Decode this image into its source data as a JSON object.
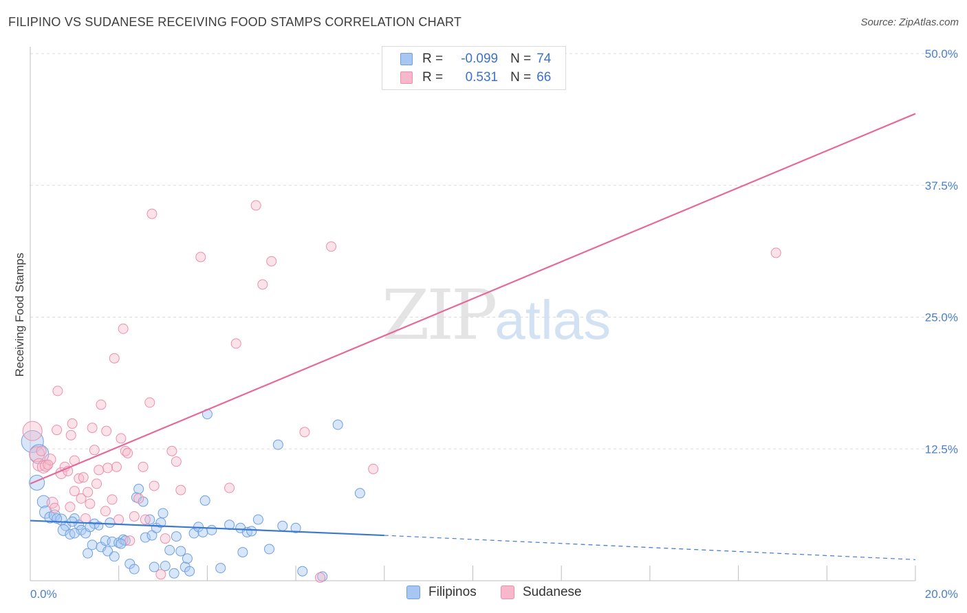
{
  "title": "FILIPINO VS SUDANESE RECEIVING FOOD STAMPS CORRELATION CHART",
  "source": "Source: ZipAtlas.com",
  "watermark": {
    "zip": "ZIP",
    "atlas": "atlas"
  },
  "legend": {
    "rows": [
      {
        "r_label": "R =",
        "r_value": "-0.099",
        "n_label": "N =",
        "n_value": "74",
        "color": "#a7c7f2"
      },
      {
        "r_label": "R =",
        "r_value": "0.531",
        "n_label": "N =",
        "n_value": "66",
        "color": "#f7b8cb"
      }
    ]
  },
  "bottom_legend": {
    "filipinos": "Filipinos",
    "sudanese": "Sudanese"
  },
  "colors": {
    "blue": "#4a86d6",
    "blue_fill": "#a7c7f2",
    "pink": "#e96c97",
    "pink_fill": "#f7b8cb",
    "tick": "#4a7fcf"
  },
  "chart_data": {
    "type": "scatter",
    "title": "FILIPINO VS SUDANESE RECEIVING FOOD STAMPS CORRELATION CHART",
    "xlabel": "",
    "ylabel": "Receiving Food Stamps",
    "xlim": [
      0,
      20
    ],
    "ylim": [
      0,
      50
    ],
    "x_tick_labels": [
      "0.0%",
      "20.0%"
    ],
    "y_ticks": [
      12.5,
      25.0,
      37.5,
      50.0
    ],
    "y_tick_labels": [
      "12.5%",
      "25.0%",
      "37.5%",
      "50.0%"
    ],
    "grid": true,
    "legend_position": "top-center",
    "series": [
      {
        "name": "Filipinos",
        "r": -0.099,
        "n": 74,
        "trend": {
          "x0": 0,
          "y0": 5.7,
          "x1": 8.0,
          "y1": 4.3,
          "dashed_to_x": 20,
          "dashed_to_y": 2.0
        },
        "points": [
          [
            0.05,
            13.2,
            16
          ],
          [
            0.2,
            12.0,
            14
          ],
          [
            0.15,
            9.3,
            11
          ],
          [
            0.3,
            7.5,
            9
          ],
          [
            0.35,
            6.5,
            9
          ],
          [
            0.45,
            6.0,
            8
          ],
          [
            0.55,
            6.2,
            8
          ],
          [
            0.7,
            5.8,
            8
          ],
          [
            0.8,
            5.2,
            7
          ],
          [
            0.75,
            4.8,
            8
          ],
          [
            0.9,
            4.4,
            7
          ],
          [
            1.0,
            5.9,
            7
          ],
          [
            1.1,
            5.3,
            7
          ],
          [
            1.15,
            4.8,
            7
          ],
          [
            1.25,
            4.5,
            7
          ],
          [
            1.3,
            2.6,
            7
          ],
          [
            1.4,
            3.4,
            7
          ],
          [
            1.45,
            5.4,
            7
          ],
          [
            1.55,
            5.2,
            6
          ],
          [
            1.6,
            3.2,
            7
          ],
          [
            1.7,
            3.8,
            7
          ],
          [
            1.75,
            2.8,
            7
          ],
          [
            1.8,
            5.5,
            7
          ],
          [
            1.85,
            3.7,
            7
          ],
          [
            1.9,
            2.3,
            7
          ],
          [
            2.0,
            3.6,
            7
          ],
          [
            2.1,
            3.9,
            7
          ],
          [
            2.15,
            3.8,
            7
          ],
          [
            2.25,
            1.6,
            7
          ],
          [
            2.35,
            1.1,
            7
          ],
          [
            2.4,
            7.9,
            7
          ],
          [
            2.45,
            8.7,
            7
          ],
          [
            2.55,
            7.5,
            7
          ],
          [
            2.6,
            4.1,
            7
          ],
          [
            2.7,
            5.8,
            7
          ],
          [
            2.75,
            4.3,
            7
          ],
          [
            2.85,
            5.0,
            7
          ],
          [
            2.95,
            5.5,
            7
          ],
          [
            3.0,
            6.4,
            7
          ],
          [
            2.8,
            1.3,
            7
          ],
          [
            3.05,
            1.4,
            7
          ],
          [
            3.15,
            2.9,
            7
          ],
          [
            3.25,
            0.7,
            7
          ],
          [
            3.3,
            4.2,
            7
          ],
          [
            3.4,
            2.8,
            7
          ],
          [
            3.5,
            1.3,
            7
          ],
          [
            3.55,
            2.1,
            7
          ],
          [
            3.6,
            0.9,
            7
          ],
          [
            3.7,
            4.5,
            7
          ],
          [
            3.8,
            5.1,
            7
          ],
          [
            3.9,
            4.6,
            7
          ],
          [
            3.95,
            7.6,
            7
          ],
          [
            4.0,
            15.8,
            7
          ],
          [
            4.1,
            4.8,
            7
          ],
          [
            4.3,
            1.2,
            7
          ],
          [
            4.5,
            5.3,
            7
          ],
          [
            4.75,
            5.0,
            7
          ],
          [
            4.8,
            2.7,
            7
          ],
          [
            4.9,
            4.6,
            7
          ],
          [
            5.0,
            4.7,
            7
          ],
          [
            5.15,
            5.8,
            7
          ],
          [
            5.4,
            3.0,
            7
          ],
          [
            5.6,
            12.9,
            7
          ],
          [
            5.7,
            5.2,
            7
          ],
          [
            6.0,
            5.0,
            7
          ],
          [
            6.15,
            0.9,
            7
          ],
          [
            6.6,
            0.4,
            7
          ],
          [
            6.95,
            14.8,
            7
          ],
          [
            7.45,
            8.3,
            7
          ],
          [
            1.0,
            4.5,
            7
          ],
          [
            0.6,
            5.9,
            7
          ],
          [
            2.05,
            3.5,
            7
          ],
          [
            1.35,
            5.1,
            7
          ],
          [
            0.95,
            5.6,
            7
          ]
        ]
      },
      {
        "name": "Sudanese",
        "r": 0.531,
        "n": 66,
        "trend": {
          "x0": 0,
          "y0": 9.2,
          "x1": 20,
          "y1": 44.3
        },
        "points": [
          [
            0.05,
            14.2,
            14
          ],
          [
            0.15,
            12.0,
            11
          ],
          [
            0.2,
            11.0,
            9
          ],
          [
            0.3,
            10.8,
            9
          ],
          [
            0.35,
            10.9,
            8
          ],
          [
            0.45,
            11.5,
            8
          ],
          [
            0.5,
            7.4,
            8
          ],
          [
            0.55,
            6.9,
            7
          ],
          [
            0.6,
            14.3,
            7
          ],
          [
            0.62,
            18.0,
            7
          ],
          [
            0.7,
            10.2,
            8
          ],
          [
            0.78,
            10.8,
            7
          ],
          [
            0.85,
            10.4,
            7
          ],
          [
            0.9,
            7.0,
            7
          ],
          [
            0.92,
            13.8,
            7
          ],
          [
            0.95,
            14.9,
            7
          ],
          [
            1.0,
            11.4,
            7
          ],
          [
            1.1,
            9.7,
            7
          ],
          [
            1.15,
            7.8,
            7
          ],
          [
            1.2,
            9.8,
            7
          ],
          [
            1.25,
            5.9,
            7
          ],
          [
            1.3,
            8.4,
            7
          ],
          [
            1.35,
            7.3,
            7
          ],
          [
            1.4,
            14.5,
            7
          ],
          [
            1.45,
            12.4,
            7
          ],
          [
            1.55,
            10.5,
            7
          ],
          [
            1.6,
            16.7,
            7
          ],
          [
            1.7,
            6.6,
            7
          ],
          [
            1.72,
            14.2,
            7
          ],
          [
            1.75,
            10.7,
            7
          ],
          [
            1.85,
            7.7,
            7
          ],
          [
            1.9,
            21.1,
            7
          ],
          [
            1.95,
            10.8,
            7
          ],
          [
            2.0,
            5.8,
            7
          ],
          [
            2.05,
            13.5,
            7
          ],
          [
            2.1,
            23.9,
            7
          ],
          [
            2.15,
            12.3,
            7
          ],
          [
            2.2,
            12.1,
            7
          ],
          [
            2.25,
            3.8,
            7
          ],
          [
            2.35,
            6.1,
            7
          ],
          [
            2.45,
            7.8,
            7
          ],
          [
            2.55,
            10.8,
            7
          ],
          [
            2.6,
            5.8,
            7
          ],
          [
            2.7,
            16.9,
            7
          ],
          [
            2.75,
            34.8,
            7
          ],
          [
            2.95,
            0.6,
            7
          ],
          [
            3.05,
            4.0,
            7
          ],
          [
            3.2,
            12.3,
            7
          ],
          [
            3.3,
            11.3,
            7
          ],
          [
            3.4,
            8.6,
            7
          ],
          [
            3.85,
            30.7,
            7
          ],
          [
            4.5,
            8.8,
            7
          ],
          [
            4.65,
            22.5,
            7
          ],
          [
            5.1,
            35.6,
            7
          ],
          [
            5.25,
            28.1,
            7
          ],
          [
            5.45,
            30.3,
            7
          ],
          [
            6.2,
            14.1,
            7
          ],
          [
            6.55,
            0.3,
            7
          ],
          [
            6.8,
            31.7,
            7
          ],
          [
            7.75,
            10.6,
            7
          ],
          [
            16.85,
            31.1,
            7
          ],
          [
            1.0,
            8.5,
            7
          ],
          [
            0.4,
            11.0,
            7
          ],
          [
            1.5,
            9.2,
            7
          ],
          [
            2.8,
            9.0,
            7
          ],
          [
            0.25,
            12.3,
            7
          ]
        ]
      }
    ]
  }
}
